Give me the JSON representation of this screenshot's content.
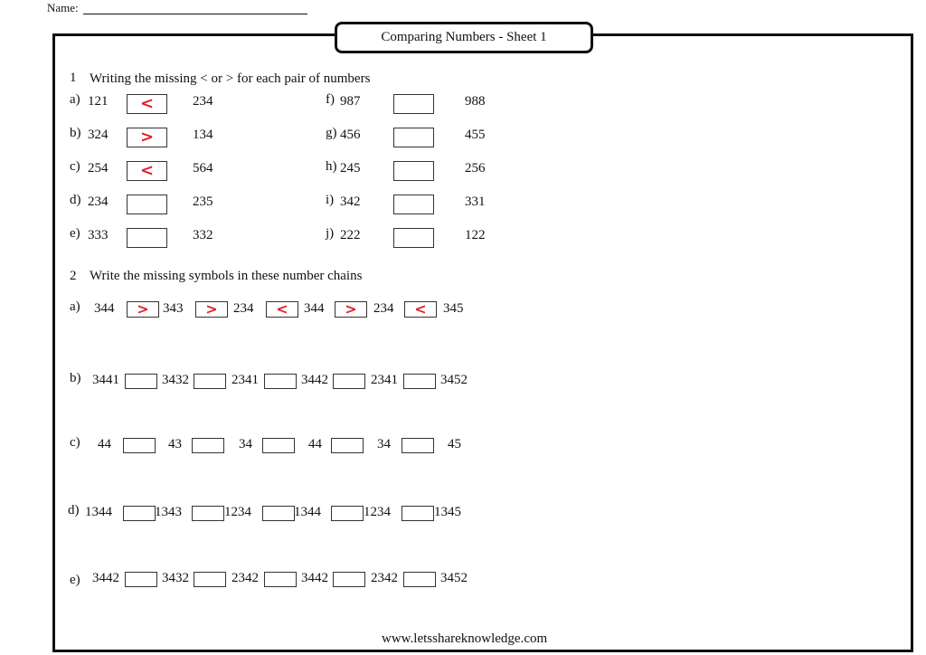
{
  "header": {
    "name_label": "Name:",
    "title": "Comparing Numbers - Sheet 1"
  },
  "q1": {
    "number": "1",
    "instruction": "Writing the missing < or > for each pair of numbers",
    "items": [
      {
        "label": "a)",
        "left": "121",
        "answer": "<",
        "right": "234"
      },
      {
        "label": "b)",
        "left": "324",
        "answer": ">",
        "right": "134"
      },
      {
        "label": "c)",
        "left": "254",
        "answer": "<",
        "right": "564"
      },
      {
        "label": "d)",
        "left": "234",
        "answer": "",
        "right": "235"
      },
      {
        "label": "e)",
        "left": "333",
        "answer": "",
        "right": "332"
      },
      {
        "label": "f)",
        "left": "987",
        "answer": "",
        "right": "988"
      },
      {
        "label": "g)",
        "left": "456",
        "answer": "",
        "right": "455"
      },
      {
        "label": "h)",
        "left": "245",
        "answer": "",
        "right": "256"
      },
      {
        "label": "i)",
        "left": "342",
        "answer": "",
        "right": "331"
      },
      {
        "label": "j)",
        "left": "222",
        "answer": "",
        "right": "122"
      }
    ]
  },
  "q2": {
    "number": "2",
    "instruction": "Write the missing symbols in these number chains",
    "chains": [
      {
        "label": "a)",
        "numbers": [
          "344",
          "343",
          "234",
          "344",
          "234",
          "345"
        ],
        "answers": [
          ">",
          ">",
          "<",
          ">",
          "<"
        ]
      },
      {
        "label": "b)",
        "numbers": [
          "3441",
          "3432",
          "2341",
          "3442",
          "2341",
          "3452"
        ],
        "answers": [
          "",
          "",
          "",
          "",
          ""
        ]
      },
      {
        "label": "c)",
        "numbers": [
          "44",
          "43",
          "34",
          "44",
          "34",
          "45"
        ],
        "answers": [
          "",
          "",
          "",
          "",
          ""
        ]
      },
      {
        "label": "d)",
        "numbers": [
          "1344",
          "1343",
          "1234",
          "1344",
          "1234",
          "1345"
        ],
        "answers": [
          "",
          "",
          "",
          "",
          ""
        ]
      },
      {
        "label": "e)",
        "numbers": [
          "3442",
          "3432",
          "2342",
          "3442",
          "2342",
          "3452"
        ],
        "answers": [
          "",
          "",
          "",
          "",
          ""
        ]
      }
    ]
  },
  "footer": {
    "website": "www.letsshareknowledge.com"
  },
  "colors": {
    "answer_ink": "#e0202a"
  }
}
